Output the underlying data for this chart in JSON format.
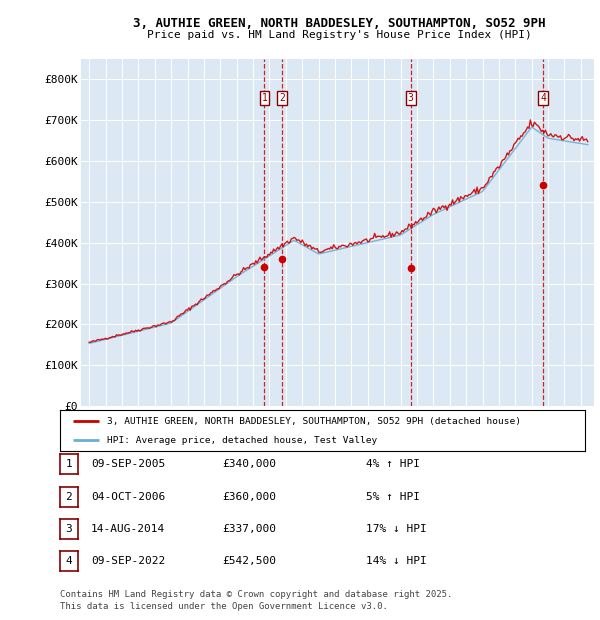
{
  "title_line1": "3, AUTHIE GREEN, NORTH BADDESLEY, SOUTHAMPTON, SO52 9PH",
  "title_line2": "Price paid vs. HM Land Registry's House Price Index (HPI)",
  "background_color": "#dce9f5",
  "ylim": [
    0,
    850000
  ],
  "yticks": [
    0,
    100000,
    200000,
    300000,
    400000,
    500000,
    600000,
    700000,
    800000
  ],
  "ytick_labels": [
    "£0",
    "£100K",
    "£200K",
    "£300K",
    "£400K",
    "£500K",
    "£600K",
    "£700K",
    "£800K"
  ],
  "sale_years": [
    2005.69,
    2006.76,
    2014.62,
    2022.69
  ],
  "sale_prices": [
    340000,
    360000,
    337000,
    542500
  ],
  "sale_labels": [
    "1",
    "2",
    "3",
    "4"
  ],
  "vline_color": "#cc0000",
  "red_line_color": "#cc0000",
  "blue_line_color": "#6baed6",
  "legend_red_label": "3, AUTHIE GREEN, NORTH BADDESLEY, SOUTHAMPTON, SO52 9PH (detached house)",
  "legend_blue_label": "HPI: Average price, detached house, Test Valley",
  "table_rows": [
    {
      "num": "1",
      "date": "09-SEP-2005",
      "price": "£340,000",
      "hpi": "4% ↑ HPI"
    },
    {
      "num": "2",
      "date": "04-OCT-2006",
      "price": "£360,000",
      "hpi": "5% ↑ HPI"
    },
    {
      "num": "3",
      "date": "14-AUG-2014",
      "price": "£337,000",
      "hpi": "17% ↓ HPI"
    },
    {
      "num": "4",
      "date": "09-SEP-2022",
      "price": "£542,500",
      "hpi": "14% ↓ HPI"
    }
  ],
  "footnote_line1": "Contains HM Land Registry data © Crown copyright and database right 2025.",
  "footnote_line2": "This data is licensed under the Open Government Licence v3.0.",
  "xlim_start": 1994.5,
  "xlim_end": 2025.8
}
